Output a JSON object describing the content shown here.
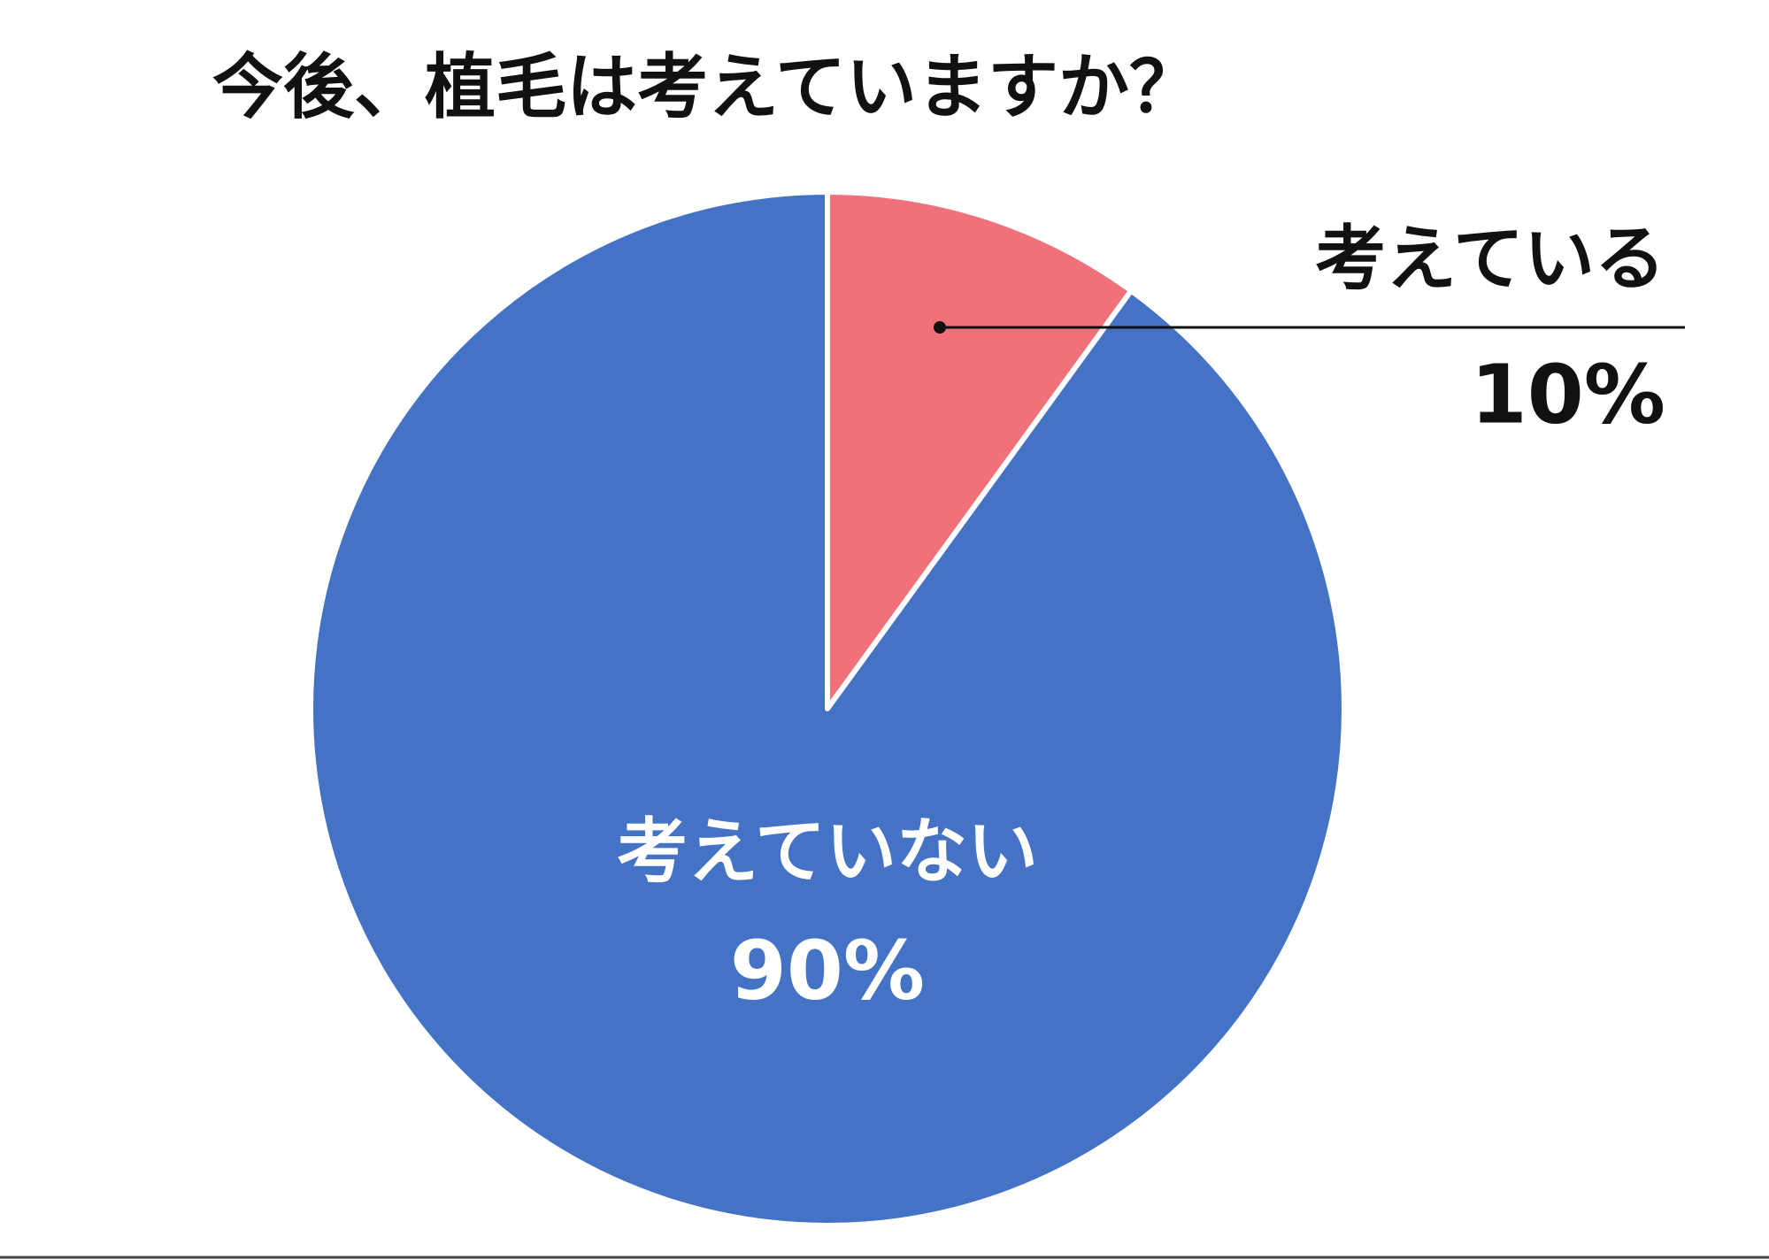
{
  "chart_data": {
    "type": "pie",
    "title": "今後、植毛は考えていますか？",
    "categories": [
      "考えている",
      "考えていない"
    ],
    "values": [
      10,
      90
    ],
    "value_labels": [
      "10%",
      "90%"
    ],
    "colors": [
      "#f0717a",
      "#4472c4"
    ]
  }
}
